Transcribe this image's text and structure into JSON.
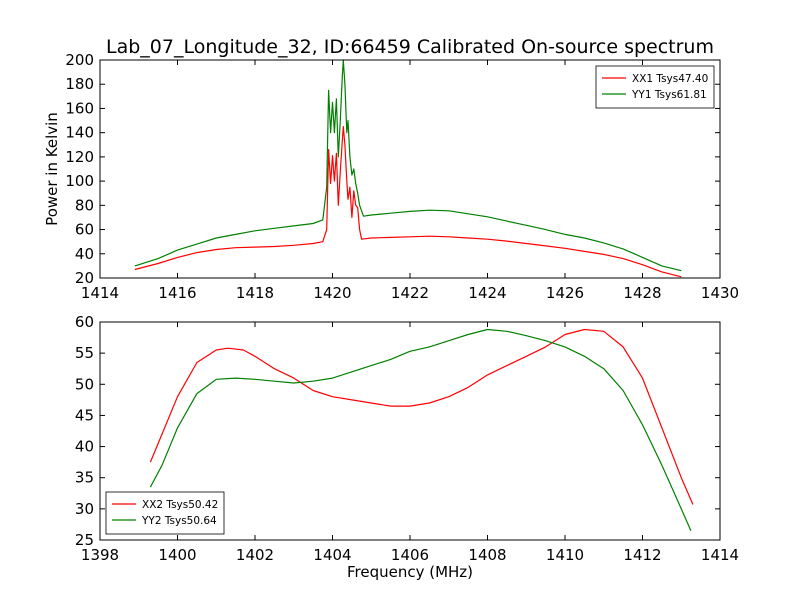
{
  "figure": {
    "title": "Lab_07_Longitude_32, ID:66459 Calibrated On-source spectrum"
  },
  "chart_data": [
    {
      "type": "line",
      "title": "Lab_07_Longitude_32, ID:66459 Calibrated On-source spectrum",
      "xlabel": "",
      "ylabel": "Power in Kelvin",
      "xlim": [
        1414,
        1430
      ],
      "ylim": [
        20,
        200
      ],
      "xticks": [
        1414,
        1416,
        1418,
        1420,
        1422,
        1424,
        1426,
        1428,
        1430
      ],
      "yticks": [
        20,
        40,
        60,
        80,
        100,
        120,
        140,
        160,
        180,
        200
      ],
      "grid": false,
      "legend_position": "upper right",
      "series": [
        {
          "name": "XX1 Tsys47.40",
          "color": "#ff0000",
          "points": [
            [
              1414.9,
              27
            ],
            [
              1415.5,
              32
            ],
            [
              1416,
              37
            ],
            [
              1416.5,
              41
            ],
            [
              1417,
              43.5
            ],
            [
              1417.5,
              45
            ],
            [
              1418,
              45.5
            ],
            [
              1418.5,
              46
            ],
            [
              1419,
              47
            ],
            [
              1419.5,
              48.5
            ],
            [
              1419.75,
              50
            ],
            [
              1419.85,
              60
            ],
            [
              1419.9,
              126
            ],
            [
              1419.95,
              98
            ],
            [
              1420.0,
              121
            ],
            [
              1420.05,
              100
            ],
            [
              1420.1,
              123
            ],
            [
              1420.15,
              80
            ],
            [
              1420.2,
              108
            ],
            [
              1420.25,
              132
            ],
            [
              1420.28,
              145
            ],
            [
              1420.32,
              130
            ],
            [
              1420.37,
              100
            ],
            [
              1420.4,
              85
            ],
            [
              1420.45,
              95
            ],
            [
              1420.5,
              70
            ],
            [
              1420.55,
              92
            ],
            [
              1420.6,
              80
            ],
            [
              1420.65,
              78
            ],
            [
              1420.7,
              60
            ],
            [
              1420.75,
              52
            ],
            [
              1421,
              53
            ],
            [
              1421.5,
              53.5
            ],
            [
              1422,
              54
            ],
            [
              1422.5,
              54.5
            ],
            [
              1423,
              54
            ],
            [
              1423.5,
              53
            ],
            [
              1424,
              52
            ],
            [
              1424.5,
              50.5
            ],
            [
              1425,
              48.5
            ],
            [
              1425.5,
              46.5
            ],
            [
              1426,
              44.5
            ],
            [
              1426.5,
              42
            ],
            [
              1427,
              39.5
            ],
            [
              1427.5,
              36
            ],
            [
              1428,
              31
            ],
            [
              1428.5,
              25
            ],
            [
              1429,
              21
            ]
          ]
        },
        {
          "name": "YY1 Tsys61.81",
          "color": "#008000",
          "points": [
            [
              1414.9,
              30
            ],
            [
              1415.5,
              36
            ],
            [
              1416,
              43
            ],
            [
              1416.5,
              48
            ],
            [
              1417,
              53
            ],
            [
              1417.5,
              56
            ],
            [
              1418,
              59
            ],
            [
              1418.5,
              61
            ],
            [
              1419,
              63
            ],
            [
              1419.5,
              65
            ],
            [
              1419.75,
              68
            ],
            [
              1419.85,
              95
            ],
            [
              1419.9,
              175
            ],
            [
              1419.95,
              140
            ],
            [
              1420.0,
              165
            ],
            [
              1420.05,
              140
            ],
            [
              1420.1,
              168
            ],
            [
              1420.15,
              120
            ],
            [
              1420.2,
              150
            ],
            [
              1420.25,
              185
            ],
            [
              1420.28,
              200
            ],
            [
              1420.32,
              180
            ],
            [
              1420.37,
              140
            ],
            [
              1420.4,
              150
            ],
            [
              1420.45,
              120
            ],
            [
              1420.5,
              105
            ],
            [
              1420.55,
              110
            ],
            [
              1420.6,
              98
            ],
            [
              1420.65,
              90
            ],
            [
              1420.7,
              80
            ],
            [
              1420.8,
              71
            ],
            [
              1421,
              72
            ],
            [
              1421.5,
              73.5
            ],
            [
              1422,
              75
            ],
            [
              1422.5,
              76
            ],
            [
              1423,
              75.5
            ],
            [
              1423.5,
              73
            ],
            [
              1424,
              70.5
            ],
            [
              1424.5,
              67
            ],
            [
              1425,
              63.5
            ],
            [
              1425.5,
              60
            ],
            [
              1426,
              56
            ],
            [
              1426.5,
              53
            ],
            [
              1427,
              49
            ],
            [
              1427.5,
              44
            ],
            [
              1428,
              37
            ],
            [
              1428.5,
              30
            ],
            [
              1429,
              26
            ]
          ]
        }
      ]
    },
    {
      "type": "line",
      "title": "",
      "xlabel": "Frequency (MHz)",
      "ylabel": "",
      "xlim": [
        1398,
        1414
      ],
      "ylim": [
        25,
        60
      ],
      "xticks": [
        1398,
        1400,
        1402,
        1404,
        1406,
        1408,
        1410,
        1412,
        1414
      ],
      "yticks": [
        25,
        30,
        35,
        40,
        45,
        50,
        55,
        60
      ],
      "grid": false,
      "legend_position": "lower left",
      "series": [
        {
          "name": "XX2 Tsys50.42",
          "color": "#ff0000",
          "points": [
            [
              1399.3,
              37.5
            ],
            [
              1399.6,
              42
            ],
            [
              1400,
              48
            ],
            [
              1400.5,
              53.5
            ],
            [
              1401,
              55.5
            ],
            [
              1401.3,
              55.8
            ],
            [
              1401.7,
              55.5
            ],
            [
              1402,
              54.5
            ],
            [
              1402.5,
              52.5
            ],
            [
              1403,
              51
            ],
            [
              1403.5,
              49
            ],
            [
              1404,
              48
            ],
            [
              1404.5,
              47.5
            ],
            [
              1405,
              47
            ],
            [
              1405.5,
              46.5
            ],
            [
              1406,
              46.5
            ],
            [
              1406.5,
              47
            ],
            [
              1407,
              48
            ],
            [
              1407.5,
              49.5
            ],
            [
              1408,
              51.5
            ],
            [
              1408.5,
              53
            ],
            [
              1409,
              54.5
            ],
            [
              1409.5,
              56
            ],
            [
              1410,
              58
            ],
            [
              1410.5,
              58.8
            ],
            [
              1411,
              58.5
            ],
            [
              1411.5,
              56
            ],
            [
              1412,
              51
            ],
            [
              1412.5,
              43
            ],
            [
              1413,
              35
            ],
            [
              1413.3,
              30.7
            ]
          ]
        },
        {
          "name": "YY2 Tsys50.64",
          "color": "#008000",
          "points": [
            [
              1399.3,
              33.5
            ],
            [
              1399.6,
              37
            ],
            [
              1400,
              43
            ],
            [
              1400.5,
              48.5
            ],
            [
              1401,
              50.8
            ],
            [
              1401.5,
              51
            ],
            [
              1402,
              50.8
            ],
            [
              1402.5,
              50.5
            ],
            [
              1403,
              50.2
            ],
            [
              1403.5,
              50.5
            ],
            [
              1404,
              51
            ],
            [
              1404.5,
              52
            ],
            [
              1405,
              53
            ],
            [
              1405.5,
              54
            ],
            [
              1406,
              55.3
            ],
            [
              1406.5,
              56
            ],
            [
              1407,
              57
            ],
            [
              1407.5,
              58
            ],
            [
              1408,
              58.8
            ],
            [
              1408.5,
              58.5
            ],
            [
              1409,
              57.8
            ],
            [
              1409.5,
              57
            ],
            [
              1410,
              56
            ],
            [
              1410.5,
              54.5
            ],
            [
              1411,
              52.5
            ],
            [
              1411.5,
              49
            ],
            [
              1412,
              43.5
            ],
            [
              1412.5,
              37
            ],
            [
              1413,
              30
            ],
            [
              1413.25,
              26.5
            ]
          ]
        }
      ]
    }
  ]
}
